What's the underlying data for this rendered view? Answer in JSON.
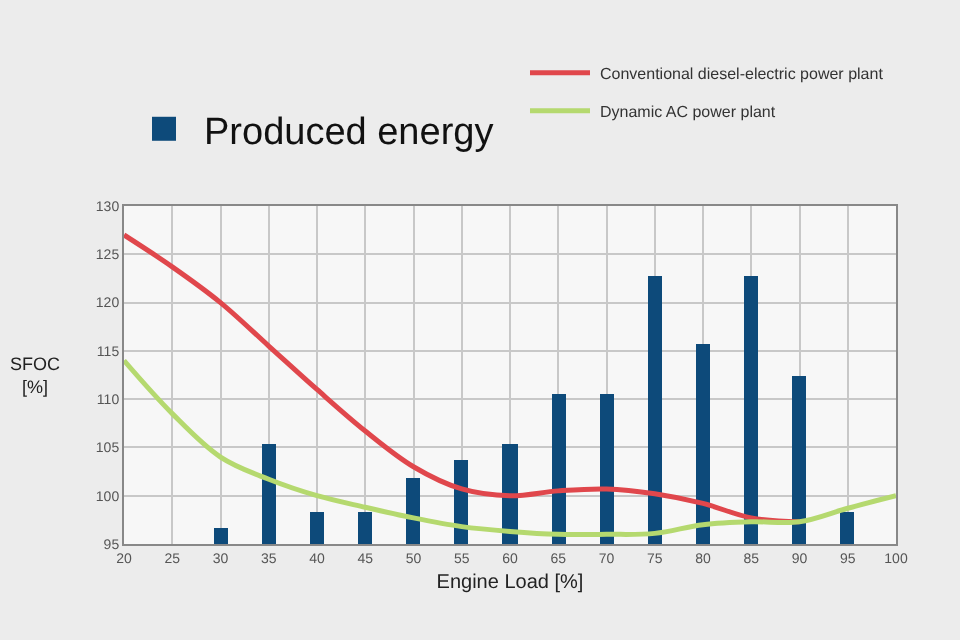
{
  "chart_data": {
    "type": "line",
    "xlabel": "Engine Load [%]",
    "ylabel": "SFOC [%]",
    "xlim": [
      20,
      100
    ],
    "xticks": [
      20,
      25,
      30,
      35,
      40,
      45,
      50,
      55,
      60,
      65,
      70,
      75,
      80,
      85,
      90,
      95,
      100
    ],
    "ylim": [
      95,
      130
    ],
    "yticks": [
      95,
      100,
      105,
      110,
      115,
      120,
      125,
      130
    ],
    "grid": true,
    "legend": "top",
    "marker": "none",
    "series": [
      {
        "name": "Produced energy",
        "type": "bar",
        "color": "#0d4a7a",
        "x": [
          30,
          35,
          40,
          45,
          50,
          55,
          60,
          65,
          70,
          75,
          80,
          85,
          90,
          95
        ],
        "values": [
          96.7,
          105.3,
          98.4,
          98.4,
          101.9,
          103.7,
          105.3,
          110.5,
          110.5,
          122.7,
          115.8,
          122.7,
          112.3,
          98.4
        ]
      },
      {
        "name": "Conventional diesel-electric power plant",
        "color": "#e0474c",
        "x": [
          20,
          25,
          30,
          35,
          40,
          45,
          50,
          55,
          60,
          65,
          70,
          75,
          80,
          85,
          90
        ],
        "values": [
          127,
          123.7,
          120,
          115.5,
          111,
          106.7,
          103,
          100.7,
          100,
          100.5,
          100.7,
          100.2,
          99.2,
          97.7,
          97.3
        ]
      },
      {
        "name": "Dynamic AC power plant",
        "color": "#b5d96f",
        "x": [
          20,
          25,
          30,
          35,
          40,
          45,
          50,
          55,
          60,
          65,
          70,
          75,
          80,
          85,
          90,
          95,
          100
        ],
        "values": [
          114,
          108.5,
          104,
          101.7,
          100,
          98.8,
          97.7,
          96.8,
          96.3,
          96,
          96,
          96.1,
          97,
          97.3,
          97.3,
          98.7,
          100
        ]
      }
    ]
  }
}
